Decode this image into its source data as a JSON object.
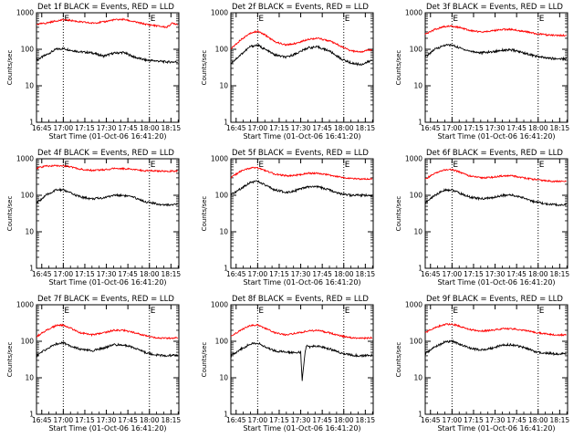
{
  "chart_data": [
    {
      "type": "line",
      "title": "Det 1f BLACK = Events, RED = LLD",
      "xlabel": "Start Time (01-Oct-06 16:41:20)",
      "ylabel": "Counts/sec",
      "yscale": "log",
      "ylim": [
        1,
        1000
      ],
      "xlim": [
        "16:41:20",
        "18:20:30"
      ],
      "x_ticks": [
        "16:45",
        "17:00",
        "17:15",
        "17:30",
        "17:45",
        "18:00",
        "18:15"
      ],
      "y_ticks": [
        "1",
        "10",
        "100",
        "1000"
      ],
      "markers": [
        "17:00",
        "18:00"
      ],
      "marker_labels": [
        "E",
        "E"
      ],
      "series": [
        {
          "color": "#000000",
          "x": [
            "16:41",
            "16:48",
            "16:55",
            "17:00",
            "17:05",
            "17:12",
            "17:20",
            "17:28",
            "17:35",
            "17:42",
            "17:50",
            "17:58",
            "18:05",
            "18:12",
            "18:20"
          ],
          "values": [
            50,
            70,
            100,
            105,
            95,
            85,
            80,
            65,
            78,
            82,
            60,
            50,
            48,
            45,
            45
          ]
        },
        {
          "color": "#ff0000",
          "x": [
            "16:41",
            "16:48",
            "16:55",
            "17:00",
            "17:05",
            "17:12",
            "17:20",
            "17:28",
            "17:35",
            "17:42",
            "17:50",
            "17:58",
            "18:05",
            "18:12",
            "18:16",
            "18:20"
          ],
          "values": [
            480,
            520,
            600,
            640,
            620,
            560,
            520,
            560,
            640,
            660,
            560,
            480,
            440,
            400,
            520,
            480
          ]
        }
      ]
    },
    {
      "type": "line",
      "title": "Det 2f BLACK = Events, RED = LLD",
      "xlabel": "Start Time (01-Oct-06 16:41:20)",
      "ylabel": "Counts/sec",
      "yscale": "log",
      "ylim": [
        1,
        1000
      ],
      "xlim": [
        "16:41:20",
        "18:20:30"
      ],
      "x_ticks": [
        "16:45",
        "17:00",
        "17:15",
        "17:30",
        "17:45",
        "18:00",
        "18:15"
      ],
      "y_ticks": [
        "1",
        "10",
        "100",
        "1000"
      ],
      "markers": [
        "17:00",
        "18:00"
      ],
      "marker_labels": [
        "E",
        "E"
      ],
      "series": [
        {
          "color": "#000000",
          "x": [
            "16:41",
            "16:48",
            "16:55",
            "17:00",
            "17:05",
            "17:12",
            "17:20",
            "17:28",
            "17:35",
            "17:42",
            "17:50",
            "17:58",
            "18:05",
            "18:12",
            "18:20"
          ],
          "values": [
            40,
            70,
            120,
            130,
            100,
            70,
            60,
            80,
            110,
            115,
            90,
            55,
            42,
            38,
            50
          ]
        },
        {
          "color": "#ff0000",
          "x": [
            "16:41",
            "16:48",
            "16:55",
            "17:00",
            "17:05",
            "17:12",
            "17:20",
            "17:28",
            "17:35",
            "17:42",
            "17:50",
            "17:58",
            "18:05",
            "18:12",
            "18:20"
          ],
          "values": [
            100,
            180,
            280,
            310,
            250,
            160,
            130,
            150,
            190,
            200,
            170,
            120,
            90,
            85,
            100
          ]
        }
      ]
    },
    {
      "type": "line",
      "title": "Det 3f BLACK = Events, RED = LLD",
      "xlabel": "Start Time (01-Oct-06 16:41:20)",
      "ylabel": "Counts/sec",
      "yscale": "log",
      "ylim": [
        1,
        1000
      ],
      "xlim": [
        "16:41:20",
        "18:20:30"
      ],
      "x_ticks": [
        "16:45",
        "17:00",
        "17:15",
        "17:30",
        "17:45",
        "18:00",
        "18:15"
      ],
      "y_ticks": [
        "1",
        "10",
        "100",
        "1000"
      ],
      "markers": [
        "17:00",
        "18:00"
      ],
      "marker_labels": [
        "E",
        "E"
      ],
      "series": [
        {
          "color": "#000000",
          "x": [
            "16:41",
            "16:48",
            "16:55",
            "17:00",
            "17:05",
            "17:12",
            "17:20",
            "17:28",
            "17:35",
            "17:42",
            "17:50",
            "17:58",
            "18:05",
            "18:12",
            "18:20"
          ],
          "values": [
            60,
            100,
            130,
            130,
            110,
            90,
            80,
            85,
            95,
            95,
            80,
            65,
            58,
            55,
            55
          ]
        },
        {
          "color": "#ff0000",
          "x": [
            "16:41",
            "16:48",
            "16:55",
            "17:00",
            "17:05",
            "17:12",
            "17:20",
            "17:28",
            "17:35",
            "17:42",
            "17:50",
            "17:58",
            "18:05",
            "18:12",
            "18:20"
          ],
          "values": [
            250,
            350,
            420,
            430,
            400,
            330,
            300,
            320,
            350,
            350,
            310,
            270,
            250,
            240,
            240
          ]
        }
      ]
    },
    {
      "type": "line",
      "title": "Det 4f BLACK = Events, RED = LLD",
      "xlabel": "Start Time (01-Oct-06 16:41:20)",
      "ylabel": "Counts/sec",
      "yscale": "log",
      "ylim": [
        1,
        1000
      ],
      "xlim": [
        "16:41:20",
        "18:20:30"
      ],
      "x_ticks": [
        "16:45",
        "17:00",
        "17:15",
        "17:30",
        "17:45",
        "18:00",
        "18:15"
      ],
      "y_ticks": [
        "1",
        "10",
        "100",
        "1000"
      ],
      "markers": [
        "17:00",
        "18:00"
      ],
      "marker_labels": [
        "E",
        "E"
      ],
      "series": [
        {
          "color": "#000000",
          "x": [
            "16:41",
            "16:48",
            "16:55",
            "17:00",
            "17:05",
            "17:12",
            "17:20",
            "17:28",
            "17:35",
            "17:42",
            "17:50",
            "17:58",
            "18:05",
            "18:12",
            "18:20"
          ],
          "values": [
            60,
            100,
            140,
            140,
            115,
            90,
            80,
            85,
            100,
            100,
            85,
            65,
            58,
            55,
            55
          ]
        },
        {
          "color": "#ff0000",
          "x": [
            "16:41",
            "16:48",
            "16:55",
            "17:00",
            "17:05",
            "17:12",
            "17:20",
            "17:28",
            "17:35",
            "17:42",
            "17:50",
            "17:58",
            "18:05",
            "18:12",
            "18:20"
          ],
          "values": [
            550,
            630,
            650,
            640,
            600,
            520,
            480,
            500,
            540,
            540,
            500,
            470,
            460,
            460,
            460
          ]
        }
      ]
    },
    {
      "type": "line",
      "title": "Det 5f BLACK = Events, RED = LLD",
      "xlabel": "Start Time (01-Oct-06 16:41:20)",
      "ylabel": "Counts/sec",
      "yscale": "log",
      "ylim": [
        1,
        1000
      ],
      "xlim": [
        "16:41:20",
        "18:20:30"
      ],
      "x_ticks": [
        "16:45",
        "17:00",
        "17:15",
        "17:30",
        "17:45",
        "18:00",
        "18:15"
      ],
      "y_ticks": [
        "1",
        "10",
        "100",
        "1000"
      ],
      "markers": [
        "17:00",
        "18:00"
      ],
      "marker_labels": [
        "E",
        "E"
      ],
      "series": [
        {
          "color": "#000000",
          "x": [
            "16:41",
            "16:48",
            "16:55",
            "17:00",
            "17:05",
            "17:12",
            "17:20",
            "17:28",
            "17:35",
            "17:42",
            "17:50",
            "17:58",
            "18:05",
            "18:12",
            "18:20"
          ],
          "values": [
            100,
            150,
            230,
            240,
            190,
            140,
            120,
            140,
            170,
            170,
            140,
            110,
            100,
            100,
            100
          ]
        },
        {
          "color": "#ff0000",
          "x": [
            "16:41",
            "16:48",
            "16:55",
            "17:00",
            "17:05",
            "17:12",
            "17:20",
            "17:28",
            "17:35",
            "17:42",
            "17:50",
            "17:58",
            "18:05",
            "18:12",
            "18:20"
          ],
          "values": [
            300,
            450,
            560,
            560,
            480,
            380,
            340,
            360,
            400,
            400,
            360,
            310,
            290,
            280,
            280
          ]
        }
      ]
    },
    {
      "type": "line",
      "title": "Det 6f BLACK = Events, RED = LLD",
      "xlabel": "Start Time (01-Oct-06 16:41:20)",
      "ylabel": "Counts/sec",
      "yscale": "log",
      "ylim": [
        1,
        1000
      ],
      "xlim": [
        "16:41:20",
        "18:20:30"
      ],
      "x_ticks": [
        "16:45",
        "17:00",
        "17:15",
        "17:30",
        "17:45",
        "18:00",
        "18:15"
      ],
      "y_ticks": [
        "1",
        "10",
        "100",
        "1000"
      ],
      "markers": [
        "17:00",
        "18:00"
      ],
      "marker_labels": [
        "E",
        "E"
      ],
      "series": [
        {
          "color": "#000000",
          "x": [
            "16:41",
            "16:48",
            "16:55",
            "17:00",
            "17:05",
            "17:12",
            "17:20",
            "17:28",
            "17:35",
            "17:42",
            "17:50",
            "17:58",
            "18:05",
            "18:12",
            "18:20"
          ],
          "values": [
            60,
            100,
            140,
            140,
            115,
            90,
            80,
            85,
            100,
            100,
            85,
            65,
            58,
            55,
            55
          ]
        },
        {
          "color": "#ff0000",
          "x": [
            "16:41",
            "16:48",
            "16:55",
            "17:00",
            "17:05",
            "17:12",
            "17:20",
            "17:28",
            "17:35",
            "17:42",
            "17:50",
            "17:58",
            "18:05",
            "18:12",
            "18:20"
          ],
          "values": [
            270,
            400,
            500,
            500,
            440,
            340,
            300,
            310,
            340,
            340,
            300,
            270,
            250,
            240,
            240
          ]
        }
      ]
    },
    {
      "type": "line",
      "title": "Det 7f BLACK = Events, RED = LLD",
      "xlabel": "Start Time (01-Oct-06 16:41:20)",
      "ylabel": "Counts/sec",
      "yscale": "log",
      "ylim": [
        1,
        1000
      ],
      "xlim": [
        "16:41:20",
        "18:20:30"
      ],
      "x_ticks": [
        "16:45",
        "17:00",
        "17:15",
        "17:30",
        "17:45",
        "18:00",
        "18:15"
      ],
      "y_ticks": [
        "1",
        "10",
        "100",
        "1000"
      ],
      "markers": [
        "17:00",
        "18:00"
      ],
      "marker_labels": [
        "E",
        "E"
      ],
      "series": [
        {
          "color": "#000000",
          "x": [
            "16:41",
            "16:48",
            "16:55",
            "17:00",
            "17:05",
            "17:12",
            "17:20",
            "17:28",
            "17:35",
            "17:42",
            "17:50",
            "17:58",
            "18:05",
            "18:12",
            "18:20"
          ],
          "values": [
            40,
            60,
            85,
            90,
            75,
            60,
            55,
            65,
            80,
            80,
            65,
            48,
            42,
            40,
            42
          ]
        },
        {
          "color": "#ff0000",
          "x": [
            "16:41",
            "16:48",
            "16:55",
            "17:00",
            "17:05",
            "17:12",
            "17:20",
            "17:28",
            "17:35",
            "17:42",
            "17:50",
            "17:58",
            "18:05",
            "18:12",
            "18:20"
          ],
          "values": [
            130,
            200,
            270,
            280,
            230,
            170,
            150,
            170,
            200,
            200,
            170,
            140,
            125,
            120,
            125
          ]
        }
      ]
    },
    {
      "type": "line",
      "title": "Det 8f BLACK = Events, RED = LLD",
      "xlabel": "Start Time (01-Oct-06 16:41:20)",
      "ylabel": "Counts/sec",
      "yscale": "log",
      "ylim": [
        1,
        1000
      ],
      "xlim": [
        "16:41:20",
        "18:20:30"
      ],
      "x_ticks": [
        "16:45",
        "17:00",
        "17:15",
        "17:30",
        "17:45",
        "18:00",
        "18:15"
      ],
      "y_ticks": [
        "1",
        "10",
        "100",
        "1000"
      ],
      "markers": [
        "17:00",
        "18:00"
      ],
      "marker_labels": [
        "E",
        "E"
      ],
      "series": [
        {
          "color": "#000000",
          "x": [
            "16:41",
            "16:48",
            "16:55",
            "17:00",
            "17:05",
            "17:12",
            "17:20",
            "17:27",
            "17:30",
            "17:31",
            "17:33",
            "17:34",
            "17:36",
            "17:42",
            "17:50",
            "17:58",
            "18:05",
            "18:12",
            "18:20"
          ],
          "values": [
            40,
            60,
            85,
            90,
            70,
            55,
            50,
            50,
            50,
            8,
            50,
            75,
            70,
            75,
            62,
            48,
            42,
            40,
            42
          ]
        },
        {
          "color": "#ff0000",
          "x": [
            "16:41",
            "16:48",
            "16:55",
            "17:00",
            "17:05",
            "17:12",
            "17:20",
            "17:28",
            "17:35",
            "17:42",
            "17:50",
            "17:58",
            "18:05",
            "18:12",
            "18:20"
          ],
          "values": [
            130,
            200,
            270,
            280,
            230,
            170,
            150,
            170,
            190,
            200,
            170,
            140,
            125,
            120,
            125
          ]
        }
      ]
    },
    {
      "type": "line",
      "title": "Det 9f BLACK = Events, RED = LLD",
      "xlabel": "Start Time (01-Oct-06 16:41:20)",
      "ylabel": "Counts/sec",
      "yscale": "log",
      "ylim": [
        1,
        1000
      ],
      "xlim": [
        "16:41:20",
        "18:20:30"
      ],
      "x_ticks": [
        "16:45",
        "17:00",
        "17:15",
        "17:30",
        "17:45",
        "18:00",
        "18:15"
      ],
      "y_ticks": [
        "1",
        "10",
        "100",
        "1000"
      ],
      "markers": [
        "17:00",
        "18:00"
      ],
      "marker_labels": [
        "E",
        "E"
      ],
      "series": [
        {
          "color": "#000000",
          "x": [
            "16:41",
            "16:48",
            "16:55",
            "17:00",
            "17:05",
            "17:12",
            "17:20",
            "17:28",
            "17:35",
            "17:42",
            "17:50",
            "17:58",
            "18:05",
            "18:12",
            "18:20"
          ],
          "values": [
            45,
            70,
            95,
            100,
            85,
            65,
            58,
            65,
            80,
            80,
            68,
            52,
            48,
            45,
            45
          ]
        },
        {
          "color": "#ff0000",
          "x": [
            "16:41",
            "16:48",
            "16:55",
            "17:00",
            "17:05",
            "17:12",
            "17:20",
            "17:28",
            "17:35",
            "17:42",
            "17:50",
            "17:58",
            "18:05",
            "18:12",
            "18:20"
          ],
          "values": [
            170,
            240,
            290,
            300,
            260,
            210,
            190,
            200,
            220,
            220,
            200,
            175,
            160,
            150,
            150
          ]
        }
      ]
    }
  ]
}
